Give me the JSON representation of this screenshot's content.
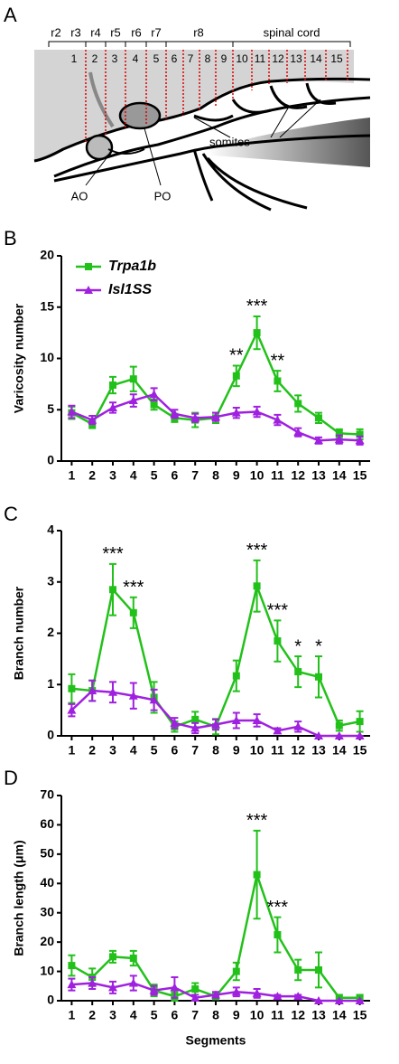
{
  "diagram": {
    "panel": "A",
    "rhombomeres": [
      "r2",
      "r3",
      "r4",
      "r5",
      "r6",
      "r7",
      "r8"
    ],
    "spinal_label": "spinal cord",
    "segments": [
      "1",
      "2",
      "3",
      "4",
      "5",
      "6",
      "7",
      "8",
      "9",
      "10",
      "11",
      "12",
      "13",
      "14",
      "15"
    ],
    "somites": "somites",
    "ao": "AO",
    "po": "PO"
  },
  "chart_data": [
    {
      "type": "line",
      "panel": "B",
      "ylabel": "Varicosity number",
      "x": [
        1,
        2,
        3,
        4,
        5,
        6,
        7,
        8,
        9,
        10,
        11,
        12,
        13,
        14,
        15
      ],
      "xlim": [
        0.5,
        15.5
      ],
      "xticks": [
        1,
        2,
        3,
        4,
        5,
        6,
        7,
        8,
        9,
        10,
        11,
        12,
        13,
        14,
        15
      ],
      "ylim": [
        0,
        20
      ],
      "yticks": [
        0,
        5,
        10,
        15,
        20
      ],
      "legend": "upper left",
      "series": [
        {
          "name": "Trpa1b",
          "color": "#22c11a",
          "marker": "square",
          "values": [
            4.7,
            3.6,
            7.4,
            8.0,
            5.5,
            4.2,
            4.0,
            4.2,
            8.3,
            12.5,
            7.8,
            5.6,
            4.2,
            2.7,
            2.6
          ],
          "errors": [
            0.6,
            0.4,
            0.8,
            1.2,
            0.5,
            0.4,
            0.7,
            0.5,
            1.0,
            1.6,
            1.0,
            0.8,
            0.5,
            0.4,
            0.5
          ],
          "significance": [
            null,
            null,
            null,
            null,
            null,
            null,
            null,
            null,
            "**",
            "***",
            "**",
            null,
            null,
            null,
            null
          ]
        },
        {
          "name": "Isl1SS",
          "color": "#a020e0",
          "marker": "triangle",
          "values": [
            4.8,
            4.0,
            5.2,
            5.9,
            6.5,
            4.6,
            4.2,
            4.3,
            4.7,
            4.8,
            4.0,
            2.8,
            2.0,
            2.1,
            2.0
          ],
          "errors": [
            0.6,
            0.4,
            0.5,
            0.6,
            0.6,
            0.4,
            0.4,
            0.4,
            0.5,
            0.5,
            0.5,
            0.4,
            0.3,
            0.4,
            0.4
          ]
        }
      ]
    },
    {
      "type": "line",
      "panel": "C",
      "ylabel": "Branch number",
      "x": [
        1,
        2,
        3,
        4,
        5,
        6,
        7,
        8,
        9,
        10,
        11,
        12,
        13,
        14,
        15
      ],
      "xlim": [
        0.5,
        15.5
      ],
      "xticks": [
        1,
        2,
        3,
        4,
        5,
        6,
        7,
        8,
        9,
        10,
        11,
        12,
        13,
        14,
        15
      ],
      "ylim": [
        0,
        4
      ],
      "yticks": [
        0,
        1,
        2,
        3,
        4
      ],
      "series": [
        {
          "name": "Trpa1b",
          "color": "#22c11a",
          "marker": "square",
          "values": [
            0.92,
            0.88,
            2.85,
            2.4,
            0.75,
            0.18,
            0.32,
            0.18,
            1.17,
            2.92,
            1.85,
            1.25,
            1.15,
            0.2,
            0.28
          ],
          "errors": [
            0.28,
            0.2,
            0.5,
            0.3,
            0.3,
            0.1,
            0.15,
            0.15,
            0.3,
            0.5,
            0.4,
            0.3,
            0.4,
            0.1,
            0.2
          ],
          "significance": [
            null,
            null,
            "***",
            "***",
            null,
            null,
            null,
            null,
            null,
            "***",
            "***",
            "*",
            "*",
            null,
            null
          ]
        },
        {
          "name": "Isl1SS",
          "color": "#a020e0",
          "marker": "triangle",
          "values": [
            0.5,
            0.88,
            0.85,
            0.78,
            0.7,
            0.25,
            0.15,
            0.22,
            0.3,
            0.3,
            0.1,
            0.18,
            0,
            0,
            0
          ],
          "errors": [
            0.12,
            0.2,
            0.2,
            0.25,
            0.2,
            0.1,
            0.1,
            0.1,
            0.15,
            0.12,
            0.05,
            0.1,
            0,
            0,
            0
          ]
        }
      ]
    },
    {
      "type": "line",
      "panel": "D",
      "ylabel": "Branch length (μm)",
      "xlabel": "Segments",
      "x": [
        1,
        2,
        3,
        4,
        5,
        6,
        7,
        8,
        9,
        10,
        11,
        12,
        13,
        14,
        15
      ],
      "xlim": [
        0.5,
        15.5
      ],
      "xticks": [
        1,
        2,
        3,
        4,
        5,
        6,
        7,
        8,
        9,
        10,
        11,
        12,
        13,
        14,
        15
      ],
      "ylim": [
        0,
        70
      ],
      "yticks": [
        0,
        10,
        20,
        30,
        40,
        50,
        60,
        70
      ],
      "series": [
        {
          "name": "Trpa1b",
          "color": "#22c11a",
          "marker": "square",
          "values": [
            12,
            8,
            15,
            14.5,
            3.5,
            1.5,
            4,
            1.5,
            10,
            43,
            22.5,
            10.5,
            10.5,
            1,
            1
          ],
          "errors": [
            3.5,
            3,
            2,
            2.5,
            2,
            1.5,
            2,
            1,
            3,
            15,
            6,
            3.5,
            6,
            1,
            1
          ],
          "significance": [
            null,
            null,
            null,
            null,
            null,
            null,
            null,
            null,
            null,
            "***",
            "***",
            null,
            null,
            null,
            null
          ]
        },
        {
          "name": "Isl1SS",
          "color": "#a020e0",
          "marker": "triangle",
          "values": [
            5.5,
            6,
            4.5,
            6,
            3.5,
            4.5,
            1,
            2,
            3,
            2.5,
            1.5,
            1.5,
            0,
            0,
            0
          ],
          "errors": [
            2,
            2,
            2,
            2.5,
            1.5,
            3.5,
            1,
            1,
            1.5,
            1.5,
            0.5,
            0.5,
            0,
            0,
            0
          ]
        }
      ]
    }
  ]
}
